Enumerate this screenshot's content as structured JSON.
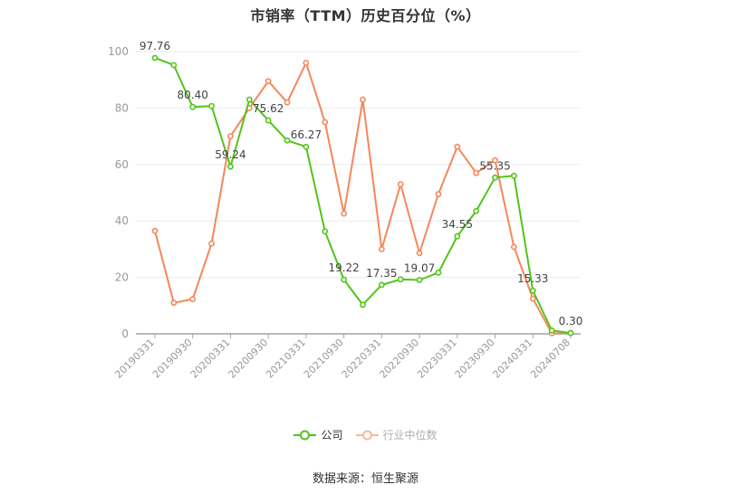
{
  "chart_data": {
    "type": "line",
    "title": "市销率（TTM）历史百分位（%）",
    "xlabel": "",
    "ylabel": "",
    "ylim": [
      0,
      100
    ],
    "yticks": [
      0,
      20,
      40,
      60,
      80,
      100
    ],
    "grid": true,
    "legend_position": "bottom",
    "x": [
      "20190331",
      "20190630",
      "20190930",
      "20191231",
      "20200331",
      "20200630",
      "20200930",
      "20201231",
      "20210331",
      "20210630",
      "20210930",
      "20211231",
      "20220331",
      "20220630",
      "20220930",
      "20221231",
      "20230331",
      "20230630",
      "20230930",
      "20231231",
      "20240331",
      "20240630",
      "20240708"
    ],
    "xtick_labels": [
      "20190331",
      "20190930",
      "20200331",
      "20200930",
      "20210331",
      "20210930",
      "20220331",
      "20220930",
      "20230331",
      "20230930",
      "20240331",
      "20240708"
    ],
    "series": [
      {
        "name": "公司",
        "color": "#52c41a",
        "values": [
          97.76,
          95.2,
          80.4,
          80.7,
          59.24,
          83.0,
          75.62,
          68.5,
          66.27,
          36.3,
          19.22,
          10.3,
          17.35,
          19.3,
          19.07,
          21.7,
          34.55,
          43.5,
          55.35,
          56.0,
          15.33,
          1.2,
          0.3
        ],
        "labels": {
          "0": "97.76",
          "2": "80.40",
          "4": "59.24",
          "6": "75.62",
          "8": "66.27",
          "10": "19.22",
          "12": "17.35",
          "14": "19.07",
          "16": "34.55",
          "18": "55.35",
          "20": "15.33",
          "22": "0.30"
        }
      },
      {
        "name": "行业中位数",
        "color": "#f5875a",
        "values": [
          36.5,
          11.0,
          12.3,
          32.0,
          70.0,
          80.0,
          89.5,
          82.0,
          96.0,
          75.0,
          42.6,
          83.0,
          30.0,
          53.0,
          28.6,
          49.5,
          66.3,
          57.0,
          61.5,
          30.8,
          12.5,
          0.2,
          0.3
        ]
      }
    ]
  },
  "legend": {
    "items": [
      {
        "label": "公司",
        "color": "#52c41a"
      },
      {
        "label": "行业中位数",
        "color": "#f9b89a"
      }
    ]
  },
  "footer": {
    "source": "数据来源：恒生聚源"
  }
}
